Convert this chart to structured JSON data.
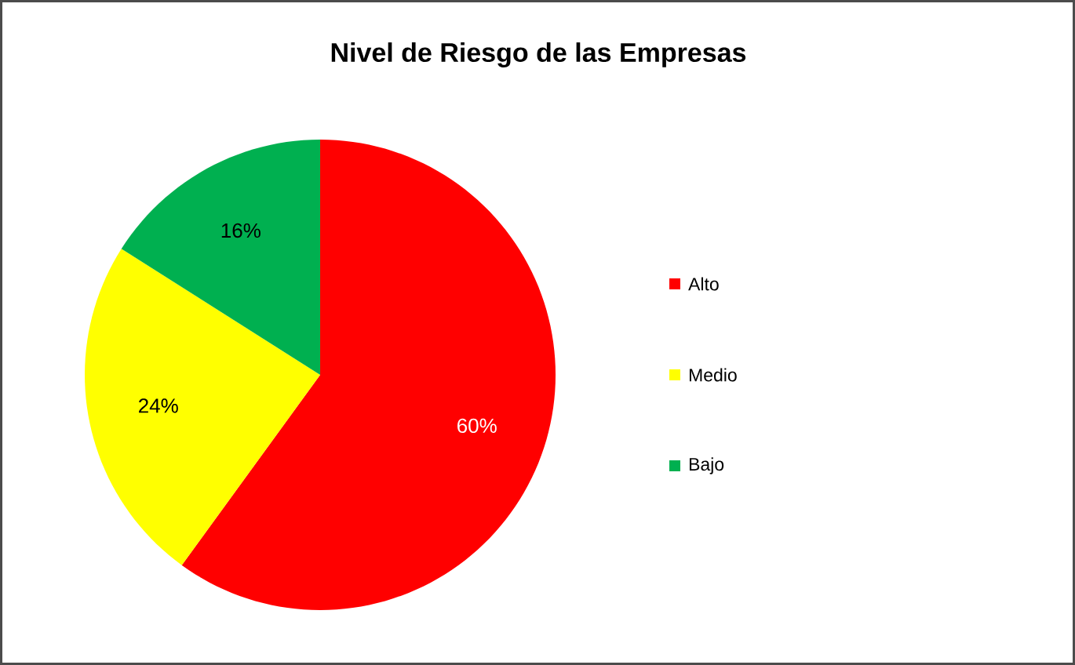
{
  "chart_data": {
    "type": "pie",
    "title": "Nivel de Riesgo de las Empresas",
    "categories": [
      "Alto",
      "Medio",
      "Bajo"
    ],
    "values": [
      60,
      24,
      16
    ],
    "value_labels": [
      "60%",
      "24%",
      "16%"
    ],
    "colors": [
      "#ff0000",
      "#ffff00",
      "#00b050"
    ],
    "legend": "right"
  }
}
